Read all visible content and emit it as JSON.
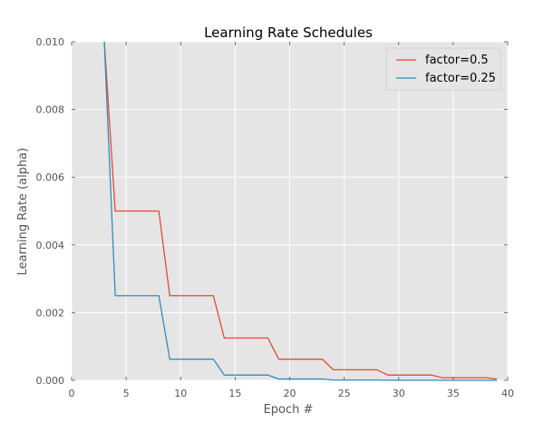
{
  "chart_data": {
    "type": "line",
    "title": "Learning Rate Schedules",
    "xlabel": "Epoch #",
    "ylabel": "Learning Rate (alpha)",
    "xlim": [
      0,
      40
    ],
    "ylim": [
      0,
      0.01
    ],
    "xticks": [
      0,
      5,
      10,
      15,
      20,
      25,
      30,
      35,
      40
    ],
    "yticks": [
      0.0,
      0.002,
      0.004,
      0.006,
      0.008,
      0.01
    ],
    "ytick_labels": [
      "0.000",
      "0.002",
      "0.004",
      "0.006",
      "0.008",
      "0.010"
    ],
    "xtick_labels": [
      "0",
      "5",
      "10",
      "15",
      "20",
      "25",
      "30",
      "35",
      "40"
    ],
    "grid": true,
    "legend_position": "top-right",
    "series": [
      {
        "name": "factor=0.5",
        "color": "#E24A33",
        "x": [
          3,
          4,
          8,
          9,
          13,
          14,
          18,
          19,
          23,
          24,
          28,
          29,
          33,
          34,
          38,
          39
        ],
        "y": [
          0.01,
          0.005,
          0.005,
          0.0025,
          0.0025,
          0.00125,
          0.00125,
          0.000625,
          0.000625,
          0.0003125,
          0.0003125,
          0.00015625,
          0.00015625,
          7.8125e-05,
          7.8125e-05,
          3.90625e-05
        ]
      },
      {
        "name": "factor=0.25",
        "color": "#348ABD",
        "x": [
          3,
          4,
          8,
          9,
          13,
          14,
          18,
          19,
          23,
          24,
          28,
          29,
          33,
          34,
          38,
          39
        ],
        "y": [
          0.01,
          0.0025,
          0.0025,
          0.000625,
          0.000625,
          0.00015625,
          0.00015625,
          3.90625e-05,
          3.90625e-05,
          9.7656e-06,
          9.7656e-06,
          2.4414e-06,
          2.4414e-06,
          6.104e-07,
          6.104e-07,
          1.526e-07
        ]
      }
    ]
  }
}
